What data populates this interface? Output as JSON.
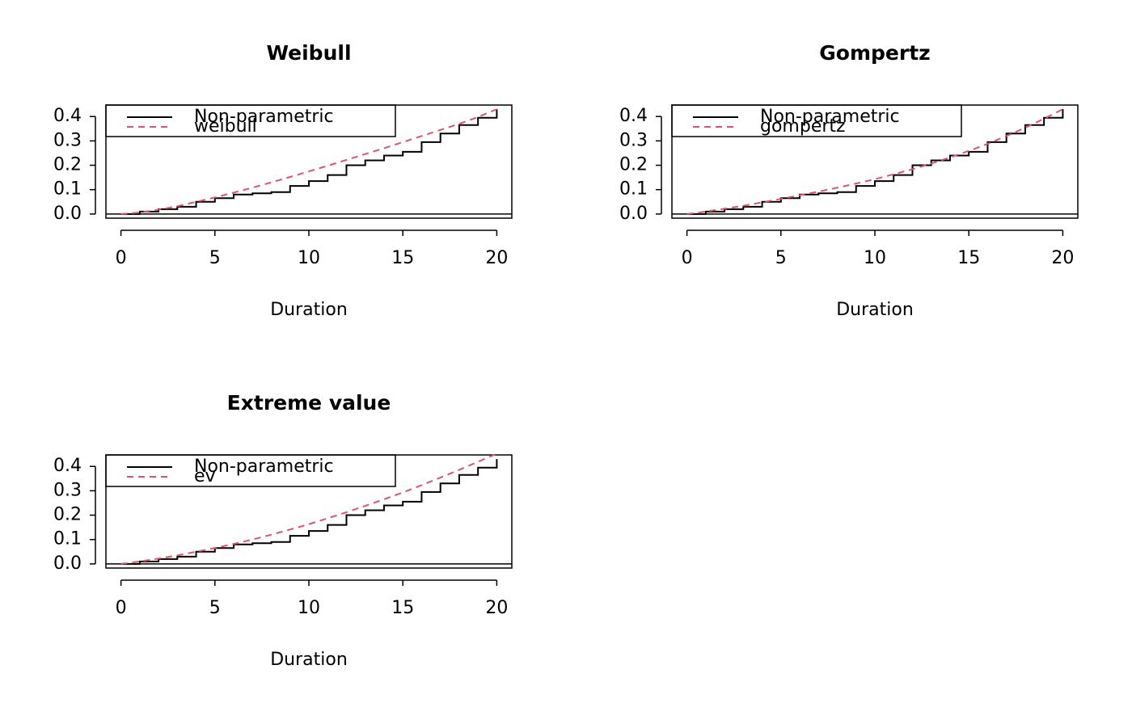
{
  "chart_data": [
    {
      "type": "line",
      "title": "Weibull",
      "x_label": "Duration",
      "x": [
        0,
        1,
        2,
        3,
        4,
        5,
        6,
        7,
        8,
        9,
        10,
        11,
        12,
        13,
        14,
        15,
        16,
        17,
        18,
        19,
        20
      ],
      "series": [
        {
          "name": "Non-parametric",
          "color": "#000000",
          "linestyle": "solid",
          "step": true,
          "values": [
            0,
            0.01,
            0.02,
            0.03,
            0.05,
            0.065,
            0.08,
            0.085,
            0.09,
            0.115,
            0.135,
            0.16,
            0.2,
            0.22,
            0.24,
            0.255,
            0.295,
            0.33,
            0.365,
            0.395,
            0.43
          ]
        },
        {
          "name": "weibull",
          "color": "#DF536B",
          "linestyle": "dashed",
          "values": [
            0,
            0.006,
            0.018,
            0.032,
            0.05,
            0.068,
            0.088,
            0.108,
            0.13,
            0.152,
            0.175,
            0.198,
            0.222,
            0.246,
            0.27,
            0.295,
            0.32,
            0.345,
            0.37,
            0.398,
            0.43
          ]
        }
      ],
      "xlim": [
        -0.8,
        20.8
      ],
      "ylim": [
        -0.017,
        0.447
      ],
      "xticks": [
        0,
        5,
        10,
        15,
        20
      ],
      "yticks": [
        {
          "value": 0,
          "label": "0.0"
        },
        0.1,
        0.2,
        0.3,
        0.4
      ],
      "hline": 0,
      "legend": "topleft"
    },
    {
      "type": "line",
      "title": "Gompertz",
      "x_label": "Duration",
      "x": [
        0,
        1,
        2,
        3,
        4,
        5,
        6,
        7,
        8,
        9,
        10,
        11,
        12,
        13,
        14,
        15,
        16,
        17,
        18,
        19,
        20
      ],
      "series": [
        {
          "name": "Non-parametric",
          "color": "#000000",
          "linestyle": "solid",
          "step": true,
          "values": [
            0,
            0.01,
            0.02,
            0.03,
            0.05,
            0.065,
            0.08,
            0.085,
            0.09,
            0.115,
            0.135,
            0.16,
            0.2,
            0.22,
            0.24,
            0.255,
            0.295,
            0.33,
            0.365,
            0.395,
            0.43
          ]
        },
        {
          "name": "gompertz",
          "color": "#DF536B",
          "linestyle": "dashed",
          "values": [
            0,
            0.01,
            0.022,
            0.034,
            0.048,
            0.062,
            0.077,
            0.092,
            0.108,
            0.125,
            0.143,
            0.163,
            0.184,
            0.207,
            0.232,
            0.259,
            0.288,
            0.32,
            0.354,
            0.391,
            0.43
          ]
        }
      ],
      "xlim": [
        -0.8,
        20.8
      ],
      "ylim": [
        -0.017,
        0.447
      ],
      "xticks": [
        0,
        5,
        10,
        15,
        20
      ],
      "yticks": [
        {
          "value": 0,
          "label": "0.0"
        },
        0.1,
        0.2,
        0.3,
        0.4
      ],
      "hline": 0,
      "legend": "topleft"
    },
    {
      "type": "line",
      "title": "Extreme value",
      "x_label": "Duration",
      "x": [
        0,
        1,
        2,
        3,
        4,
        5,
        6,
        7,
        8,
        9,
        10,
        11,
        12,
        13,
        14,
        15,
        16,
        17,
        18,
        19,
        20
      ],
      "series": [
        {
          "name": "Non-parametric",
          "color": "#000000",
          "linestyle": "solid",
          "step": true,
          "values": [
            0,
            0.01,
            0.02,
            0.03,
            0.05,
            0.065,
            0.08,
            0.085,
            0.09,
            0.115,
            0.135,
            0.16,
            0.2,
            0.22,
            0.24,
            0.255,
            0.295,
            0.33,
            0.365,
            0.395,
            0.43
          ]
        },
        {
          "name": "ev",
          "color": "#DF536B",
          "linestyle": "dashed",
          "values": [
            0,
            0.01,
            0.022,
            0.035,
            0.05,
            0.065,
            0.082,
            0.1,
            0.12,
            0.141,
            0.163,
            0.187,
            0.212,
            0.238,
            0.265,
            0.293,
            0.323,
            0.354,
            0.386,
            0.419,
            0.452
          ]
        }
      ],
      "xlim": [
        -0.8,
        20.8
      ],
      "ylim": [
        -0.017,
        0.447
      ],
      "xticks": [
        0,
        5,
        10,
        15,
        20
      ],
      "yticks": [
        {
          "value": 0,
          "label": "0.0"
        },
        0.1,
        0.2,
        0.3,
        0.4
      ],
      "hline": 0,
      "legend": "topleft"
    }
  ]
}
